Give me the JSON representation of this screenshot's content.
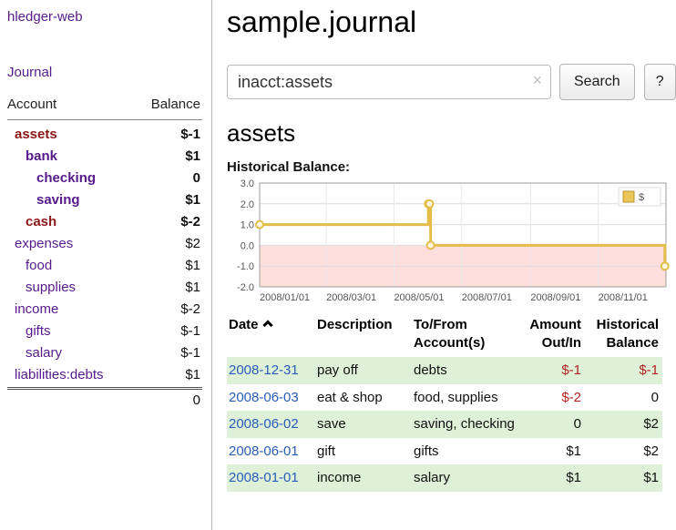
{
  "app": {
    "name": "hledger-web"
  },
  "sidebar": {
    "journal_link": "Journal",
    "table": {
      "account_header": "Account",
      "balance_header": "Balance",
      "accounts": [
        {
          "name": "assets",
          "balance": "$-1",
          "level": 0
        },
        {
          "name": "bank",
          "balance": "$1",
          "level": 1
        },
        {
          "name": "checking",
          "balance": "0",
          "level": 2
        },
        {
          "name": "saving",
          "balance": "$1",
          "level": 2
        },
        {
          "name": "cash",
          "balance": "$-2",
          "level": 1
        },
        {
          "name": "expenses",
          "balance": "$2",
          "level": 0
        },
        {
          "name": "food",
          "balance": "$1",
          "level": 1
        },
        {
          "name": "supplies",
          "balance": "$1",
          "level": 1
        },
        {
          "name": "income",
          "balance": "$-2",
          "level": 0
        },
        {
          "name": "gifts",
          "balance": "$-1",
          "level": 1
        },
        {
          "name": "salary",
          "balance": "$-1",
          "level": 1
        },
        {
          "name": "liabilities:debts",
          "balance": "$1",
          "level": 0
        }
      ],
      "total": "0"
    }
  },
  "main": {
    "title": "sample.journal",
    "search": {
      "value": "inacct:assets",
      "clear_icon": "×",
      "button_label": "Search",
      "help_label": "?"
    },
    "account_heading": "assets",
    "chart_heading": "Historical Balance:"
  },
  "chart_data": {
    "type": "line",
    "step": true,
    "title": "Historical Balance",
    "series": [
      {
        "name": "$",
        "color": "#e3bd4a",
        "points": [
          {
            "date": "2008-01-01",
            "value": 1
          },
          {
            "date": "2008-06-01",
            "value": 2
          },
          {
            "date": "2008-06-02",
            "value": 2
          },
          {
            "date": "2008-06-03",
            "value": 0
          },
          {
            "date": "2008-12-31",
            "value": -1
          }
        ]
      }
    ],
    "ylim": [
      -2,
      3
    ],
    "yticks": [
      3.0,
      2.0,
      1.0,
      0.0,
      -1.0,
      -2.0
    ],
    "xticks": [
      "2008/01/01",
      "2008/03/01",
      "2008/05/01",
      "2008/07/01",
      "2008/09/01",
      "2008/11/01"
    ],
    "x_range": [
      "2008-01-01",
      "2009-01-01"
    ],
    "grid": true,
    "negative_region_color": "#ffdede",
    "legend": {
      "position": "top-right",
      "label": "$",
      "swatch_color": "#e9c659"
    }
  },
  "register": {
    "headers": {
      "date": "Date",
      "description": "Description",
      "account_line1": "To/From",
      "account_line2": "Account(s)",
      "amount_line1": "Amount",
      "amount_line2": "Out/In",
      "balance_line1": "Historical",
      "balance_line2": "Balance"
    },
    "rows": [
      {
        "date": "2008-12-31",
        "description": "pay off",
        "account": "debts",
        "amount": "$-1",
        "balance": "$-1"
      },
      {
        "date": "2008-06-03",
        "description": "eat & shop",
        "account": "food, supplies",
        "amount": "$-2",
        "balance": "0"
      },
      {
        "date": "2008-06-02",
        "description": "save",
        "account": "saving, checking",
        "amount": "0",
        "balance": "$2"
      },
      {
        "date": "2008-06-01",
        "description": "gift",
        "account": "gifts",
        "amount": "$1",
        "balance": "$2"
      },
      {
        "date": "2008-01-01",
        "description": "income",
        "account": "salary",
        "amount": "$1",
        "balance": "$1"
      }
    ]
  }
}
